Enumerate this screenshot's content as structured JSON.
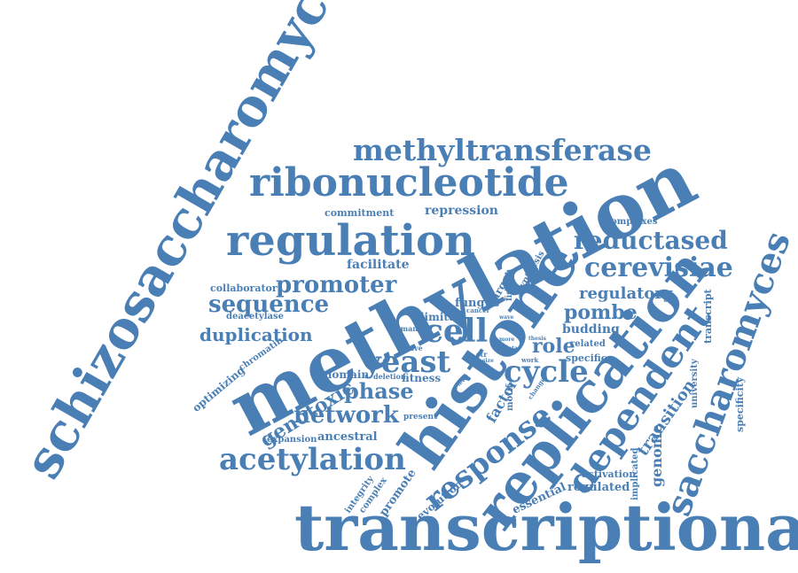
{
  "word_cloud": {
    "color": "#4a7fb5",
    "words": [
      {
        "text": "transcriptional",
        "rotation": "horizontal"
      },
      {
        "text": "methylation",
        "rotation": "diagonal-up"
      },
      {
        "text": "schizosaccharomyces",
        "rotation": "diagonal-up"
      },
      {
        "text": "histone",
        "rotation": "diagonal-up"
      },
      {
        "text": "replication",
        "rotation": "diagonal-up"
      },
      {
        "text": "ribonucleotide",
        "rotation": "horizontal"
      },
      {
        "text": "regulation",
        "rotation": "horizontal"
      },
      {
        "text": "methyltransferase",
        "rotation": "horizontal"
      },
      {
        "text": "saccharomyces",
        "rotation": "diagonal-up"
      },
      {
        "text": "dependent",
        "rotation": "diagonal-up"
      },
      {
        "text": "cerevisiae",
        "rotation": "horizontal"
      },
      {
        "text": "reductased",
        "rotation": "horizontal"
      },
      {
        "text": "acetylation",
        "rotation": "horizontal"
      },
      {
        "text": "cycle",
        "rotation": "horizontal"
      },
      {
        "text": "yeast",
        "rotation": "horizontal"
      },
      {
        "text": "cell",
        "rotation": "horizontal"
      },
      {
        "text": "promoter",
        "rotation": "horizontal"
      },
      {
        "text": "sequence",
        "rotation": "horizontal"
      },
      {
        "text": "response",
        "rotation": "diagonal-up"
      },
      {
        "text": "network",
        "rotation": "horizontal"
      },
      {
        "text": "duplication",
        "rotation": "horizontal"
      },
      {
        "text": "phase",
        "rotation": "horizontal"
      },
      {
        "text": "pombe",
        "rotation": "horizontal"
      },
      {
        "text": "regulatory",
        "rotation": "horizontal"
      },
      {
        "text": "genotoxic",
        "rotation": "diagonal-up"
      },
      {
        "text": "role",
        "rotation": "horizontal"
      },
      {
        "text": "transition",
        "rotation": "diagonal-up"
      },
      {
        "text": "genome",
        "rotation": "vertical-up"
      },
      {
        "text": "facilitate",
        "rotation": "horizontal"
      },
      {
        "text": "repression",
        "rotation": "horizontal"
      },
      {
        "text": "commitment",
        "rotation": "horizontal"
      },
      {
        "text": "collaborator",
        "rotation": "horizontal"
      },
      {
        "text": "deacetylase",
        "rotation": "horizontal"
      },
      {
        "text": "budding",
        "rotation": "horizontal"
      },
      {
        "text": "specific",
        "rotation": "horizontal"
      },
      {
        "text": "related",
        "rotation": "horizontal"
      },
      {
        "text": "fitness",
        "rotation": "horizontal"
      },
      {
        "text": "domain",
        "rotation": "horizontal"
      },
      {
        "text": "deletion",
        "rotation": "horizontal"
      },
      {
        "text": "ancestral",
        "rotation": "horizontal"
      },
      {
        "text": "expansion",
        "rotation": "horizontal"
      },
      {
        "text": "present",
        "rotation": "horizontal"
      },
      {
        "text": "optimizing",
        "rotation": "diagonal-up"
      },
      {
        "text": "chromatin",
        "rotation": "diagonal-up"
      },
      {
        "text": "limited",
        "rotation": "horizontal"
      },
      {
        "text": "human",
        "rotation": "horizontal"
      },
      {
        "text": "have",
        "rotation": "horizontal"
      },
      {
        "text": "fungus",
        "rotation": "horizontal"
      },
      {
        "text": "target",
        "rotation": "diagonal-up"
      },
      {
        "text": "synthesis",
        "rotation": "diagonal-up"
      },
      {
        "text": "fission",
        "rotation": "vertical-up"
      },
      {
        "text": "cancer",
        "rotation": "horizontal"
      },
      {
        "text": "factor",
        "rotation": "diagonal-up"
      },
      {
        "text": "motif",
        "rotation": "vertical-up"
      },
      {
        "text": "essential",
        "rotation": "diagonal-up"
      },
      {
        "text": "regulated",
        "rotation": "horizontal"
      },
      {
        "text": "activation",
        "rotation": "horizontal"
      },
      {
        "text": "implicated",
        "rotation": "vertical-up"
      },
      {
        "text": "complexes",
        "rotation": "horizontal"
      },
      {
        "text": "transcript",
        "rotation": "vertical-up"
      },
      {
        "text": "university",
        "rotation": "vertical-up"
      },
      {
        "text": "specificity",
        "rotation": "vertical-up"
      },
      {
        "text": "evolution",
        "rotation": "diagonal-up"
      },
      {
        "text": "promote",
        "rotation": "diagonal-up"
      },
      {
        "text": "complex",
        "rotation": "diagonal-up"
      },
      {
        "text": "integrity",
        "rotation": "diagonal-up"
      },
      {
        "text": "thesis",
        "rotation": "horizontal"
      },
      {
        "text": "work",
        "rotation": "horizontal"
      },
      {
        "text": "more",
        "rotation": "horizontal"
      },
      {
        "text": "data",
        "rotation": "horizontal"
      },
      {
        "text": "size",
        "rotation": "horizontal"
      },
      {
        "text": "str",
        "rotation": "horizontal"
      },
      {
        "text": "wave",
        "rotation": "horizontal"
      },
      {
        "text": "change",
        "rotation": "diagonal-up"
      },
      {
        "text": "level",
        "rotation": "diagonal-up"
      }
    ]
  }
}
